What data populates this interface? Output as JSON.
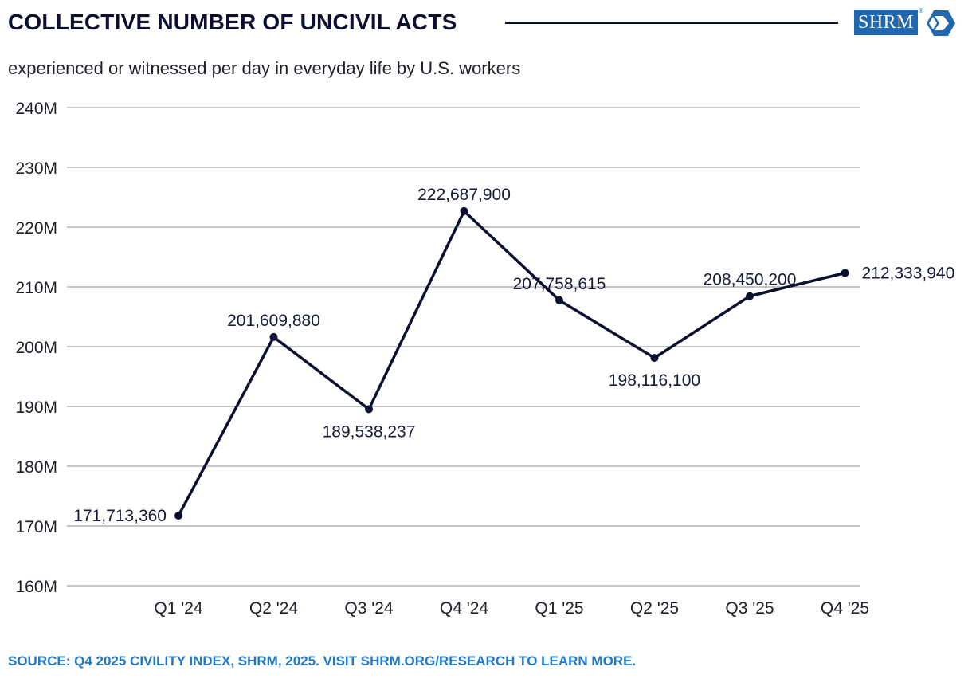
{
  "header": {
    "title": "COLLECTIVE NUMBER OF UNCIVIL ACTS",
    "subtitle": "experienced or witnessed per day in everyday life by U.S. workers",
    "logo_text": "SHRM",
    "logo_reg": "®",
    "logo_icon": "shrm-hexagon-chevron-icon"
  },
  "footer": {
    "source": "SOURCE: Q4 2025 CIVILITY INDEX, SHRM, 2025. VISIT SHRM.ORG/RESEARCH TO LEARN MORE."
  },
  "colors": {
    "line": "#0b1030",
    "grid": "#b4b4b4",
    "title": "#0b1030",
    "source": "#1f78c8",
    "logo": "#1f68b0"
  },
  "chart_data": {
    "type": "line",
    "title": "COLLECTIVE NUMBER OF UNCIVIL ACTS",
    "subtitle": "experienced or witnessed per day in everyday life by U.S. workers",
    "xlabel": "",
    "ylabel": "",
    "categories": [
      "Q1 '24",
      "Q2 '24",
      "Q3 '24",
      "Q4 '24",
      "Q1 '25",
      "Q2 '25",
      "Q3 '25",
      "Q4 '25"
    ],
    "series": [
      {
        "values": [
          171713360,
          201609880,
          189538237,
          222687900,
          207758615,
          198116100,
          208450200,
          212333940
        ],
        "labels": [
          "171,713,360",
          "201,609,880",
          "189,538,237",
          "222,687,900",
          "207,758,615",
          "198,116,100",
          "208,450,200",
          "212,333,940"
        ]
      }
    ],
    "label_positions": [
      "left",
      "above",
      "below",
      "above",
      "above",
      "below",
      "above",
      "right"
    ],
    "ylim": [
      160000000,
      240000000
    ],
    "yticks": [
      160000000,
      170000000,
      180000000,
      190000000,
      200000000,
      210000000,
      220000000,
      230000000,
      240000000
    ],
    "ytick_labels": [
      "160M",
      "170M",
      "180M",
      "190M",
      "200M",
      "210M",
      "220M",
      "230M",
      "240M"
    ],
    "grid": true,
    "legend": "none"
  }
}
